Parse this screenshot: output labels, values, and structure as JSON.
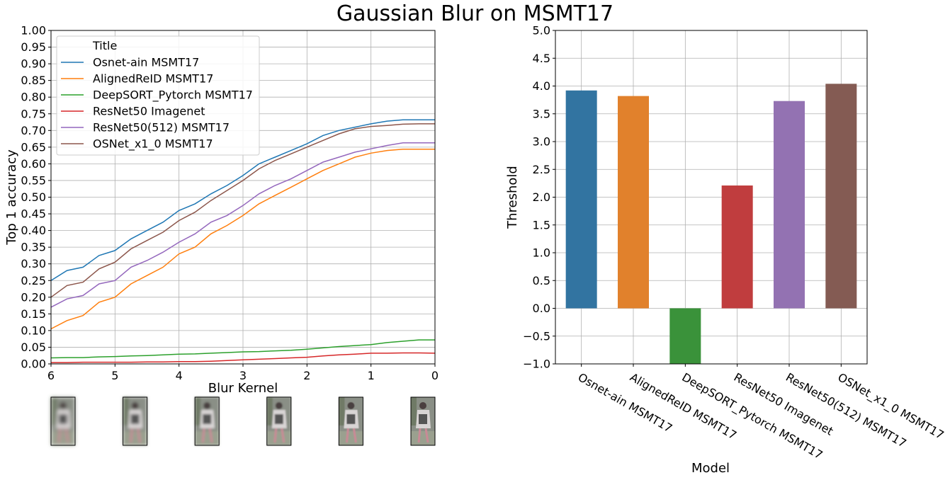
{
  "title": "Gaussian Blur on MSMT17",
  "chart_data": [
    {
      "type": "line",
      "xlabel": "Blur Kernel",
      "ylabel": "Top 1 accuracy",
      "xlim": [
        6,
        0
      ],
      "ylim": [
        0,
        1
      ],
      "grid": true,
      "xticks": [
        "6",
        "5",
        "4",
        "3",
        "2",
        "1",
        "0"
      ],
      "yticks": [
        "0.00",
        "0.05",
        "0.10",
        "0.15",
        "0.20",
        "0.25",
        "0.30",
        "0.35",
        "0.40",
        "0.45",
        "0.50",
        "0.55",
        "0.60",
        "0.65",
        "0.70",
        "0.75",
        "0.80",
        "0.85",
        "0.90",
        "0.95",
        "1.00"
      ],
      "legend": {
        "title": "Title",
        "placement": "upper-left"
      },
      "x": [
        6,
        5.75,
        5.5,
        5.25,
        5,
        4.75,
        4.5,
        4.25,
        4,
        3.75,
        3.5,
        3.25,
        3,
        2.75,
        2.5,
        2.25,
        2,
        1.75,
        1.5,
        1.25,
        1,
        0.75,
        0.5,
        0.25,
        0
      ],
      "series": [
        {
          "name": "Osnet-ain MSMT17",
          "color": "#1f77b4",
          "values": [
            0.25,
            0.28,
            0.29,
            0.325,
            0.34,
            0.375,
            0.4,
            0.425,
            0.46,
            0.48,
            0.51,
            0.535,
            0.565,
            0.6,
            0.62,
            0.64,
            0.66,
            0.685,
            0.7,
            0.71,
            0.72,
            0.728,
            0.732,
            0.732,
            0.732
          ]
        },
        {
          "name": "AlignedReID MSMT17",
          "color": "#ff7f0e",
          "values": [
            0.105,
            0.13,
            0.145,
            0.185,
            0.2,
            0.24,
            0.265,
            0.29,
            0.33,
            0.35,
            0.39,
            0.415,
            0.445,
            0.48,
            0.505,
            0.53,
            0.555,
            0.58,
            0.6,
            0.62,
            0.632,
            0.64,
            0.644,
            0.644,
            0.644
          ]
        },
        {
          "name": "DeepSORT_Pytorch MSMT17",
          "color": "#2ca02c",
          "values": [
            0.018,
            0.019,
            0.019,
            0.021,
            0.022,
            0.024,
            0.025,
            0.027,
            0.029,
            0.03,
            0.032,
            0.034,
            0.036,
            0.037,
            0.039,
            0.041,
            0.044,
            0.048,
            0.052,
            0.055,
            0.058,
            0.064,
            0.068,
            0.072,
            0.072
          ]
        },
        {
          "name": "ResNet50 Imagenet",
          "color": "#d62728",
          "values": [
            0.004,
            0.004,
            0.005,
            0.005,
            0.005,
            0.005,
            0.006,
            0.006,
            0.007,
            0.007,
            0.008,
            0.01,
            0.012,
            0.014,
            0.016,
            0.018,
            0.02,
            0.024,
            0.027,
            0.029,
            0.032,
            0.032,
            0.033,
            0.033,
            0.032
          ]
        },
        {
          "name": "ResNet50(512) MSMT17",
          "color": "#9467bd",
          "values": [
            0.17,
            0.195,
            0.205,
            0.24,
            0.25,
            0.29,
            0.31,
            0.335,
            0.365,
            0.39,
            0.425,
            0.445,
            0.475,
            0.51,
            0.535,
            0.555,
            0.58,
            0.605,
            0.62,
            0.635,
            0.645,
            0.655,
            0.663,
            0.663,
            0.663
          ]
        },
        {
          "name": "OSNet_x1_0 MSMT17",
          "color": "#8c564b",
          "values": [
            0.2,
            0.235,
            0.245,
            0.285,
            0.305,
            0.345,
            0.37,
            0.395,
            0.43,
            0.455,
            0.49,
            0.52,
            0.55,
            0.585,
            0.61,
            0.63,
            0.65,
            0.67,
            0.69,
            0.705,
            0.712,
            0.715,
            0.719,
            0.72,
            0.72
          ]
        }
      ]
    },
    {
      "type": "bar",
      "xlabel": "Model",
      "ylabel": "Threshold",
      "ylim": [
        -1.0,
        5.0
      ],
      "grid": true,
      "yticks": [
        "−1.0",
        "−0.5",
        "0.0",
        "0.5",
        "1.0",
        "1.5",
        "2.0",
        "2.5",
        "3.0",
        "3.5",
        "4.0",
        "4.5",
        "5.0"
      ],
      "categories": [
        "Osnet-ain MSMT17",
        "AlignedReID MSMT17",
        "DeepSORT_Pytorch MSMT17",
        "ResNet50 Imagenet",
        "ResNet50(512) MSMT17",
        "OSNet_x1_0 MSMT17"
      ],
      "values": [
        3.92,
        3.82,
        -1.0,
        2.21,
        3.73,
        4.04
      ],
      "colors": [
        "#3274a1",
        "#e1812c",
        "#3a923a",
        "#c03d3e",
        "#9372b2",
        "#845b53"
      ]
    }
  ],
  "thumbnails": {
    "count": 6,
    "description_icon": "person-blur-thumbnail"
  }
}
